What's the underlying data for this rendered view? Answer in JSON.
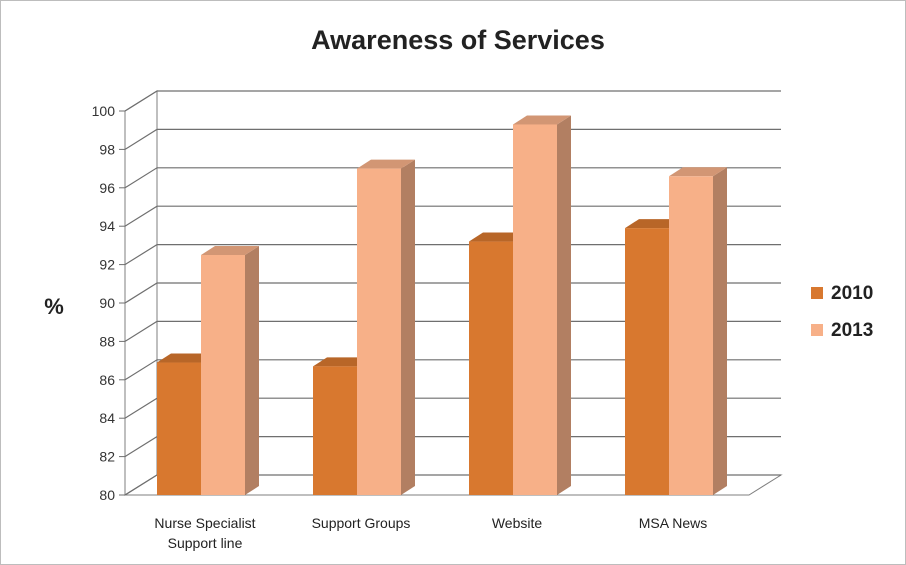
{
  "chart_data": {
    "type": "bar",
    "title": "Awareness of Services",
    "ylabel": "%",
    "xlabel": "",
    "categories": [
      "Nurse Specialist\nSupport line",
      "Support Groups",
      "Website",
      "MSA News"
    ],
    "series": [
      {
        "name": "2010",
        "values": [
          86.9,
          86.7,
          93.2,
          93.9
        ],
        "color": "#d8782f"
      },
      {
        "name": "2013",
        "values": [
          92.5,
          97.0,
          99.3,
          96.6
        ],
        "color": "#f7b088"
      }
    ],
    "ylim": [
      80,
      100
    ],
    "yticks": [
      80,
      82,
      84,
      86,
      88,
      90,
      92,
      94,
      96,
      98,
      100
    ],
    "grid": true,
    "legend_position": "right",
    "style": "3d-column"
  }
}
